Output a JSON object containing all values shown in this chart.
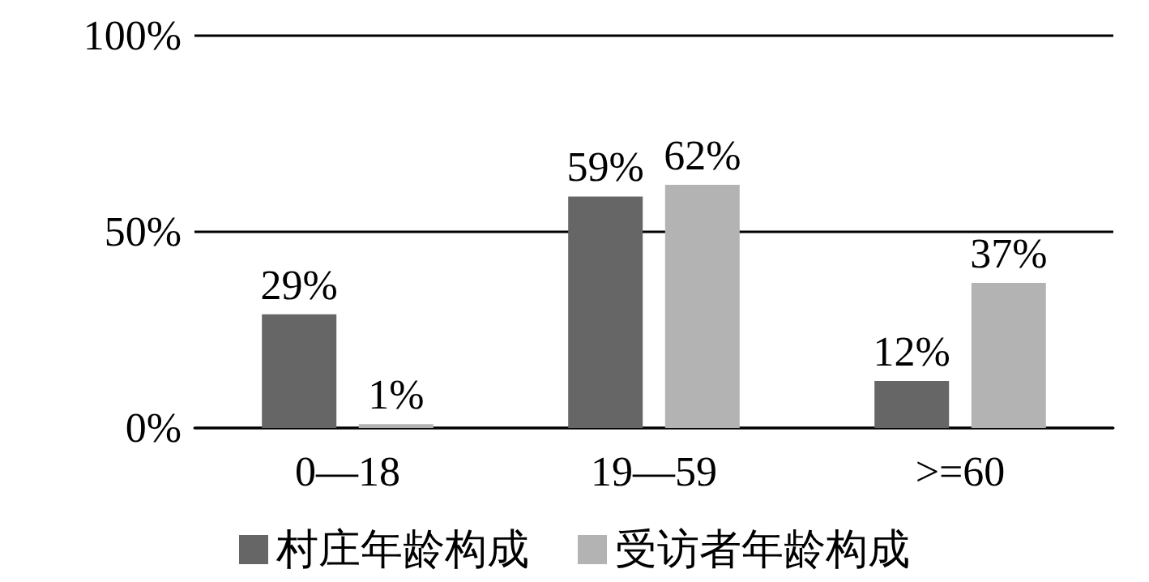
{
  "chart_data": {
    "type": "bar",
    "categories": [
      "0—18",
      "19—59",
      ">=60"
    ],
    "series": [
      {
        "name": "村庄年龄构成",
        "color": "#666666",
        "values": [
          29,
          59,
          12
        ],
        "value_labels": [
          "29%",
          "59%",
          "12%"
        ]
      },
      {
        "name": "受访者年龄构成",
        "color": "#b3b3b3",
        "values": [
          1,
          62,
          37
        ],
        "value_labels": [
          "1%",
          "62%",
          "37%"
        ]
      }
    ],
    "ylim": [
      0,
      100
    ],
    "yticks": [
      {
        "value": 0,
        "label": "0%"
      },
      {
        "value": 50,
        "label": "50%"
      },
      {
        "value": 100,
        "label": "100%"
      }
    ],
    "grid": "y",
    "legend": "bottom"
  }
}
